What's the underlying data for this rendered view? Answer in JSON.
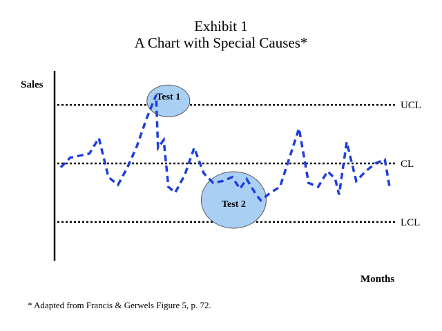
{
  "title_line1": "Exhibit 1",
  "title_line2": "A Chart with Special Causes*",
  "footnote": "* Adapted from Francis & Gerwels Figure 5, p. 72.",
  "chart_data": {
    "type": "line",
    "title": "Exhibit 1 A Chart with Special Causes*",
    "xlabel": "Months",
    "ylabel": "Sales",
    "reference_lines": [
      {
        "label": "UCL",
        "value": 3
      },
      {
        "label": "CL",
        "value": 0
      },
      {
        "label": "LCL",
        "value": -3
      }
    ],
    "annotations": [
      {
        "label": "Test 1",
        "x": 11,
        "y": 3.7
      },
      {
        "label": "Test 2",
        "x": 18,
        "y": -1.8
      }
    ],
    "series": [
      {
        "color": "#1f3fdc",
        "values": [
          {
            "x": 0,
            "y": -0.2
          },
          {
            "x": 1,
            "y": 0.3
          },
          {
            "x": 2,
            "y": 0.4
          },
          {
            "x": 3,
            "y": 0.5
          },
          {
            "x": 4,
            "y": 1.3
          },
          {
            "x": 5,
            "y": -0.7
          },
          {
            "x": 6,
            "y": -1.1
          },
          {
            "x": 7,
            "y": -0.2
          },
          {
            "x": 8,
            "y": 0.9
          },
          {
            "x": 9,
            "y": 2.3
          },
          {
            "x": 10,
            "y": 3.5
          },
          {
            "x": 10.2,
            "y": 0.8
          },
          {
            "x": 10.8,
            "y": 1.2
          },
          {
            "x": 11.3,
            "y": -1.2
          },
          {
            "x": 12,
            "y": -1.5
          },
          {
            "x": 13,
            "y": -0.6
          },
          {
            "x": 14,
            "y": 0.8
          },
          {
            "x": 15,
            "y": -0.5
          },
          {
            "x": 16,
            "y": -1.0
          },
          {
            "x": 17,
            "y": -0.9
          },
          {
            "x": 18,
            "y": -0.7
          },
          {
            "x": 18.8,
            "y": -1.3
          },
          {
            "x": 19.5,
            "y": -0.8
          },
          {
            "x": 20.5,
            "y": -1.6
          },
          {
            "x": 21,
            "y": -1.9
          },
          {
            "x": 22,
            "y": -1.5
          },
          {
            "x": 23,
            "y": -1.2
          },
          {
            "x": 24,
            "y": 0.3
          },
          {
            "x": 25,
            "y": 1.8
          },
          {
            "x": 26,
            "y": -1.0
          },
          {
            "x": 27,
            "y": -1.2
          },
          {
            "x": 28,
            "y": -0.4
          },
          {
            "x": 28.8,
            "y": -0.8
          },
          {
            "x": 29.2,
            "y": -1.6
          },
          {
            "x": 30,
            "y": 1.1
          },
          {
            "x": 31,
            "y": -0.9
          },
          {
            "x": 32,
            "y": -0.4
          },
          {
            "x": 33,
            "y": -0.0
          },
          {
            "x": 34,
            "y": 0.2
          },
          {
            "x": 34.5,
            "y": -1.2
          }
        ]
      }
    ]
  }
}
